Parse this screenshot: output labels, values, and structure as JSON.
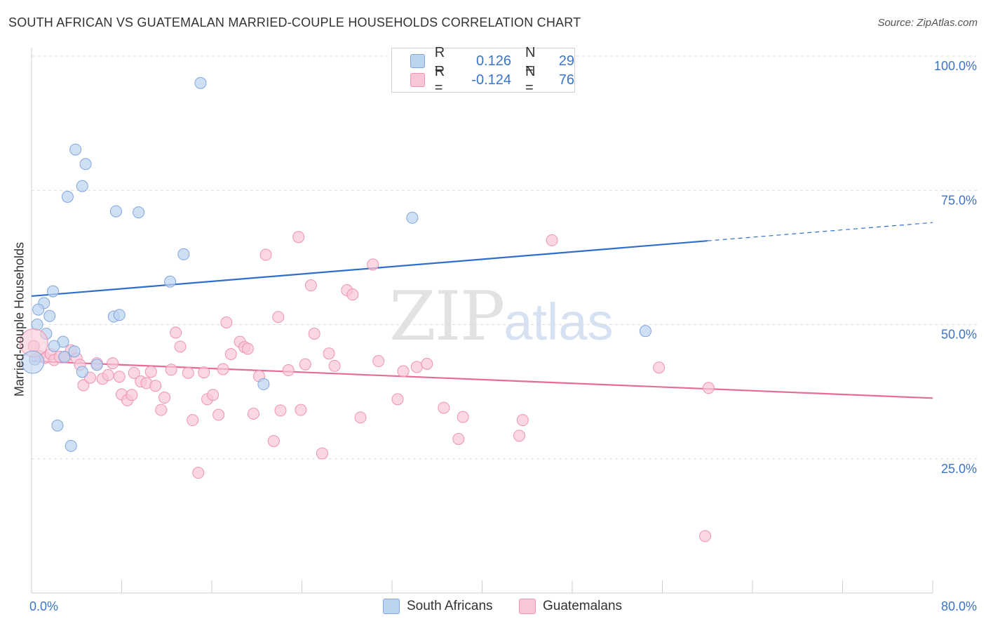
{
  "title": "SOUTH AFRICAN VS GUATEMALAN MARRIED-COUPLE HOUSEHOLDS CORRELATION CHART",
  "source": "Source: ZipAtlas.com",
  "watermark": {
    "zip": "ZIP",
    "atlas": "atlas"
  },
  "legend": {
    "rows": [
      {
        "r_label": "R =",
        "r_value": "0.126",
        "n_label": "N =",
        "n_value": "29"
      },
      {
        "r_label": "R =",
        "r_value": "-0.124",
        "n_label": "N =",
        "n_value": "76"
      }
    ]
  },
  "bottom_legend": {
    "series1": "South Africans",
    "series2": "Guatemalans"
  },
  "colors": {
    "blue_fill": "#bcd3f0",
    "blue_stroke": "#7fa6dc",
    "blue_line": "#2f6fcb",
    "pink_fill": "#f8c6d6",
    "pink_stroke": "#ee93b1",
    "pink_line": "#e56b98",
    "axis_label": "#3b74c8"
  },
  "chart_data": {
    "type": "scatter",
    "title": "SOUTH AFRICAN VS GUATEMALAN MARRIED-COUPLE HOUSEHOLDS CORRELATION CHART",
    "xlabel": "",
    "ylabel": "Married-couple Households",
    "xlim": [
      0,
      80
    ],
    "ylim": [
      0,
      100
    ],
    "x_tick_labels": [
      "0.0%",
      "80.0%"
    ],
    "y_tick_labels": [
      "25.0%",
      "50.0%",
      "75.0%",
      "100.0%"
    ],
    "y_ticks": [
      25,
      50,
      75,
      100
    ],
    "grid": true,
    "legend_placement": "top-center",
    "series": [
      {
        "name": "South Africans",
        "r": 0.126,
        "n": 29,
        "trend": {
          "x0": 0,
          "y0": 55.3,
          "x1": 60,
          "y1": 65.6,
          "dashed_to_x": 80,
          "dashed_to_y": 69.0
        },
        "points": [
          [
            15.0,
            95.0
          ],
          [
            3.9,
            82.6
          ],
          [
            4.8,
            79.9
          ],
          [
            4.5,
            75.8
          ],
          [
            3.2,
            73.8
          ],
          [
            7.5,
            71.1
          ],
          [
            9.5,
            70.9
          ],
          [
            33.8,
            69.9
          ],
          [
            13.5,
            63.1
          ],
          [
            12.3,
            58.0
          ],
          [
            1.9,
            56.2
          ],
          [
            1.1,
            54.0
          ],
          [
            0.6,
            52.8
          ],
          [
            1.6,
            51.6
          ],
          [
            7.3,
            51.5
          ],
          [
            7.8,
            51.8
          ],
          [
            0.5,
            50.0
          ],
          [
            1.3,
            48.3
          ],
          [
            54.5,
            48.8
          ],
          [
            2.8,
            46.8
          ],
          [
            2.0,
            46.0
          ],
          [
            3.8,
            45.0
          ],
          [
            2.9,
            44.0
          ],
          [
            0.3,
            43.5
          ],
          [
            5.8,
            42.5
          ],
          [
            4.5,
            41.2
          ],
          [
            20.6,
            38.9
          ],
          [
            2.3,
            31.2
          ],
          [
            3.5,
            27.4
          ]
        ]
      },
      {
        "name": "Guatemalans",
        "r": -0.124,
        "n": 76,
        "trend": {
          "x0": 0,
          "y0": 43.2,
          "x1": 80,
          "y1": 36.3
        },
        "points": [
          [
            0.2,
            46.0
          ],
          [
            0.7,
            44.1
          ],
          [
            1.2,
            43.8
          ],
          [
            1.7,
            44.5
          ],
          [
            2.0,
            43.4
          ],
          [
            2.5,
            44.0
          ],
          [
            3.0,
            43.9
          ],
          [
            3.5,
            45.2
          ],
          [
            4.0,
            43.7
          ],
          [
            4.3,
            42.5
          ],
          [
            4.6,
            38.7
          ],
          [
            5.2,
            40.1
          ],
          [
            5.8,
            42.8
          ],
          [
            6.3,
            39.9
          ],
          [
            6.8,
            40.6
          ],
          [
            7.2,
            42.8
          ],
          [
            7.8,
            40.3
          ],
          [
            8.0,
            37.0
          ],
          [
            8.5,
            35.9
          ],
          [
            8.9,
            36.9
          ],
          [
            9.1,
            41.0
          ],
          [
            9.7,
            39.4
          ],
          [
            10.2,
            39.1
          ],
          [
            10.6,
            41.2
          ],
          [
            11.0,
            38.6
          ],
          [
            11.5,
            34.1
          ],
          [
            11.8,
            36.4
          ],
          [
            12.4,
            41.6
          ],
          [
            12.8,
            48.5
          ],
          [
            13.2,
            45.9
          ],
          [
            13.9,
            41.0
          ],
          [
            14.3,
            32.2
          ],
          [
            14.8,
            22.4
          ],
          [
            15.3,
            41.1
          ],
          [
            15.6,
            36.1
          ],
          [
            16.1,
            36.9
          ],
          [
            16.6,
            33.2
          ],
          [
            17.0,
            41.7
          ],
          [
            17.3,
            50.4
          ],
          [
            17.7,
            44.5
          ],
          [
            18.5,
            46.8
          ],
          [
            18.9,
            45.8
          ],
          [
            19.2,
            45.5
          ],
          [
            19.7,
            33.4
          ],
          [
            20.2,
            40.4
          ],
          [
            20.8,
            63.0
          ],
          [
            21.5,
            28.3
          ],
          [
            21.9,
            51.4
          ],
          [
            22.1,
            34.0
          ],
          [
            22.8,
            41.5
          ],
          [
            23.7,
            66.3
          ],
          [
            23.9,
            34.1
          ],
          [
            24.3,
            42.6
          ],
          [
            24.8,
            57.3
          ],
          [
            25.1,
            48.3
          ],
          [
            25.8,
            26.0
          ],
          [
            26.4,
            44.6
          ],
          [
            26.9,
            42.3
          ],
          [
            28.0,
            56.4
          ],
          [
            28.5,
            55.6
          ],
          [
            29.2,
            32.7
          ],
          [
            30.3,
            61.2
          ],
          [
            30.8,
            43.2
          ],
          [
            32.5,
            36.1
          ],
          [
            33.0,
            41.3
          ],
          [
            34.2,
            42.1
          ],
          [
            35.1,
            42.7
          ],
          [
            36.6,
            34.5
          ],
          [
            37.9,
            28.7
          ],
          [
            38.3,
            32.8
          ],
          [
            43.3,
            29.3
          ],
          [
            43.6,
            32.2
          ],
          [
            46.2,
            65.7
          ],
          [
            55.7,
            42.0
          ],
          [
            60.1,
            38.2
          ],
          [
            59.8,
            10.6
          ]
        ]
      }
    ]
  }
}
